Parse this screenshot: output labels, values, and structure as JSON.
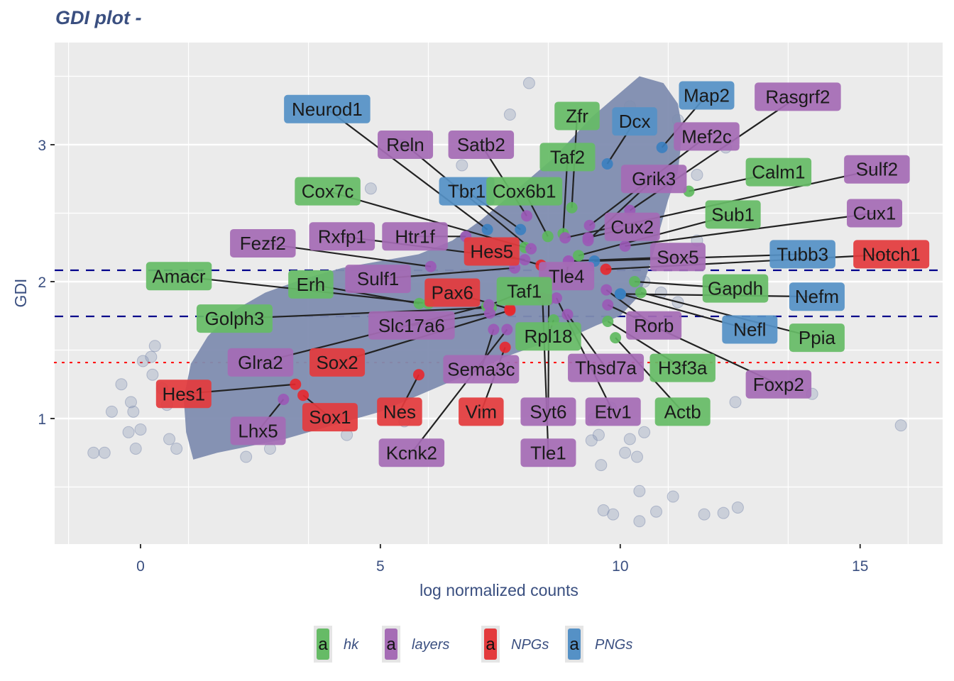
{
  "chart_data": {
    "type": "scatter",
    "title": "GDI plot -",
    "xlabel": "log normalized counts",
    "ylabel": "GDI",
    "xlim": [
      -1.79,
      16.72
    ],
    "ylim": [
      0.083,
      3.746
    ],
    "x_ticks": [
      0,
      5,
      10,
      15
    ],
    "y_ticks": [
      1,
      2,
      3
    ],
    "grid": true,
    "reference_lines": [
      {
        "y": 2.083,
        "style": "dashed",
        "color": "#00008b"
      },
      {
        "y": 1.746,
        "style": "dashed",
        "color": "#00008b"
      },
      {
        "y": 1.409,
        "style": "dotted",
        "color": "#ff0000"
      }
    ],
    "background_cloud": {
      "description": "all genes",
      "color": "#7f8db0",
      "outliers": [
        [
          -0.98,
          0.75
        ],
        [
          -0.75,
          0.75
        ],
        [
          -0.6,
          1.05
        ],
        [
          -0.25,
          0.9
        ],
        [
          -0.15,
          1.05
        ],
        [
          0.0,
          0.92
        ],
        [
          -0.1,
          0.78
        ],
        [
          0.22,
          1.45
        ],
        [
          0.25,
          1.32
        ],
        [
          0.3,
          1.53
        ],
        [
          0.45,
          1.22
        ],
        [
          0.55,
          1.1
        ],
        [
          -0.4,
          1.25
        ],
        [
          -0.2,
          1.12
        ],
        [
          0.05,
          1.42
        ],
        [
          0.6,
          0.85
        ],
        [
          0.75,
          0.78
        ],
        [
          2.2,
          0.72
        ],
        [
          2.7,
          0.78
        ],
        [
          4.3,
          0.88
        ],
        [
          5.5,
          0.98
        ],
        [
          4.8,
          2.68
        ],
        [
          5.45,
          3.0
        ],
        [
          6.7,
          2.85
        ],
        [
          7.7,
          3.22
        ],
        [
          8.1,
          3.45
        ],
        [
          9.05,
          3.0
        ],
        [
          10.2,
          3.28
        ],
        [
          11.2,
          3.18
        ],
        [
          11.6,
          2.78
        ],
        [
          12.2,
          2.98
        ],
        [
          11.6,
          2.3
        ],
        [
          10.5,
          2.0
        ],
        [
          10.85,
          1.92
        ],
        [
          11.2,
          1.85
        ],
        [
          9.45,
          1.0
        ],
        [
          9.55,
          0.88
        ],
        [
          9.4,
          0.84
        ],
        [
          9.8,
          1.08
        ],
        [
          9.6,
          0.66
        ],
        [
          10.1,
          0.75
        ],
        [
          10.35,
          0.72
        ],
        [
          9.65,
          0.33
        ],
        [
          9.85,
          0.3
        ],
        [
          10.4,
          0.25
        ],
        [
          10.4,
          0.47
        ],
        [
          10.75,
          0.32
        ],
        [
          11.1,
          0.43
        ],
        [
          11.75,
          0.3
        ],
        [
          12.15,
          0.31
        ],
        [
          12.45,
          0.35
        ],
        [
          12.4,
          1.12
        ],
        [
          13.6,
          1.25
        ],
        [
          14.0,
          1.18
        ],
        [
          15.85,
          0.95
        ],
        [
          10.5,
          0.9
        ],
        [
          10.2,
          0.85
        ]
      ]
    },
    "series": [
      {
        "name": "hk",
        "color": "#5cb85c",
        "label_color": "#66bb66",
        "points": [
          {
            "gene": "Zfr",
            "x": 8.99,
            "y": 2.54
          },
          {
            "gene": "Taf2",
            "x": 8.81,
            "y": 2.35
          },
          {
            "gene": "Cox6b1",
            "x": 8.49,
            "y": 2.33
          },
          {
            "gene": "Cox7c",
            "x": 8.01,
            "y": 2.25
          },
          {
            "gene": "Calm1",
            "x": 11.43,
            "y": 2.66
          },
          {
            "gene": "Sub1",
            "x": 9.13,
            "y": 2.19
          },
          {
            "gene": "Amacr",
            "x": 6.0,
            "y": 1.84
          },
          {
            "gene": "Erh",
            "x": 5.81,
            "y": 1.84
          },
          {
            "gene": "Golph3",
            "x": 7.31,
            "y": 1.81
          },
          {
            "gene": "Taf1",
            "x": 7.22,
            "y": 1.82
          },
          {
            "gene": "Gapdh",
            "x": 10.3,
            "y": 2.0
          },
          {
            "gene": "Ppia",
            "x": 10.43,
            "y": 1.92
          },
          {
            "gene": "Rpl18",
            "x": 8.61,
            "y": 1.72
          },
          {
            "gene": "H3f3a",
            "x": 9.74,
            "y": 1.71
          },
          {
            "gene": "Actb",
            "x": 9.9,
            "y": 1.59
          }
        ]
      },
      {
        "name": "layers",
        "color": "#9b59b6",
        "label_color": "#a56cb5",
        "points": [
          {
            "gene": "Reln",
            "x": 8.14,
            "y": 2.24
          },
          {
            "gene": "Satb2",
            "x": 8.05,
            "y": 2.48
          },
          {
            "gene": "Rasgrf2",
            "x": 10.2,
            "y": 2.52
          },
          {
            "gene": "Mef2c",
            "x": 9.36,
            "y": 2.41
          },
          {
            "gene": "Grik3",
            "x": 9.33,
            "y": 2.3
          },
          {
            "gene": "Sulf2",
            "x": 8.85,
            "y": 2.32
          },
          {
            "gene": "Cux2",
            "x": 9.33,
            "y": 2.32
          },
          {
            "gene": "Cux1",
            "x": 10.1,
            "y": 2.26
          },
          {
            "gene": "Fezf2",
            "x": 6.05,
            "y": 2.11
          },
          {
            "gene": "Rxfp1",
            "x": 8.01,
            "y": 2.16
          },
          {
            "gene": "Htr1f",
            "x": 6.78,
            "y": 2.33
          },
          {
            "gene": "Sulf1",
            "x": 7.8,
            "y": 2.1
          },
          {
            "gene": "Sox5",
            "x": 8.92,
            "y": 2.15
          },
          {
            "gene": "Tle4",
            "x": 8.92,
            "y": 2.15
          },
          {
            "gene": "Slc17a6",
            "x": 7.28,
            "y": 1.77
          },
          {
            "gene": "Glra2",
            "x": 7.26,
            "y": 1.83
          },
          {
            "gene": "Sema3c",
            "x": 7.36,
            "y": 1.65
          },
          {
            "gene": "Kcnk2",
            "x": 7.64,
            "y": 1.65
          },
          {
            "gene": "Syt6",
            "x": 8.51,
            "y": 1.87
          },
          {
            "gene": "Tle1",
            "x": 8.38,
            "y": 1.88
          },
          {
            "gene": "Thsd7a",
            "x": 8.9,
            "y": 1.76
          },
          {
            "gene": "Etv1",
            "x": 8.67,
            "y": 1.88
          },
          {
            "gene": "Rorb",
            "x": 9.71,
            "y": 1.94
          },
          {
            "gene": "Foxp2",
            "x": 9.74,
            "y": 1.83
          },
          {
            "gene": "Lhx5",
            "x": 2.98,
            "y": 1.14
          }
        ]
      },
      {
        "name": "NPGs",
        "color": "#e8282e",
        "label_color": "#e33b3d",
        "points": [
          {
            "gene": "Hes5",
            "x": 8.35,
            "y": 2.12
          },
          {
            "gene": "Notch1",
            "x": 9.7,
            "y": 2.09
          },
          {
            "gene": "Pax6",
            "x": 7.7,
            "y": 1.8
          },
          {
            "gene": "Sox2",
            "x": 7.7,
            "y": 1.79
          },
          {
            "gene": "Hes1",
            "x": 3.23,
            "y": 1.25
          },
          {
            "gene": "Sox1",
            "x": 3.39,
            "y": 1.17
          },
          {
            "gene": "Nes",
            "x": 5.8,
            "y": 1.32
          },
          {
            "gene": "Vim",
            "x": 7.6,
            "y": 1.52
          }
        ]
      },
      {
        "name": "PNGs",
        "color": "#3a7fc0",
        "label_color": "#5591c6",
        "points": [
          {
            "gene": "Neurod1",
            "x": 7.23,
            "y": 2.38
          },
          {
            "gene": "Tbr1",
            "x": 7.92,
            "y": 2.38
          },
          {
            "gene": "Dcx",
            "x": 9.73,
            "y": 2.86
          },
          {
            "gene": "Map2",
            "x": 10.87,
            "y": 2.98
          },
          {
            "gene": "Tubb3",
            "x": 9.46,
            "y": 2.15
          },
          {
            "gene": "Nefm",
            "x": 10.0,
            "y": 1.91
          },
          {
            "gene": "Nefl",
            "x": 10.0,
            "y": 1.91
          }
        ]
      }
    ],
    "labels": [
      {
        "gene": "Neurod1",
        "group": "PNGs",
        "lx": 3.89,
        "ly": 3.26
      },
      {
        "gene": "Reln",
        "group": "layers",
        "lx": 5.52,
        "ly": 3.0
      },
      {
        "gene": "Satb2",
        "group": "layers",
        "lx": 7.1,
        "ly": 3.0
      },
      {
        "gene": "Zfr",
        "group": "hk",
        "lx": 9.1,
        "ly": 3.21
      },
      {
        "gene": "Dcx",
        "group": "PNGs",
        "lx": 10.3,
        "ly": 3.17
      },
      {
        "gene": "Map2",
        "group": "PNGs",
        "lx": 11.8,
        "ly": 3.36
      },
      {
        "gene": "Rasgrf2",
        "group": "layers",
        "lx": 13.7,
        "ly": 3.35
      },
      {
        "gene": "Mef2c",
        "group": "layers",
        "lx": 11.8,
        "ly": 3.06
      },
      {
        "gene": "Taf2",
        "group": "hk",
        "lx": 8.9,
        "ly": 2.91
      },
      {
        "gene": "Grik3",
        "group": "layers",
        "lx": 10.7,
        "ly": 2.75
      },
      {
        "gene": "Calm1",
        "group": "hk",
        "lx": 13.3,
        "ly": 2.8
      },
      {
        "gene": "Sulf2",
        "group": "layers",
        "lx": 15.35,
        "ly": 2.82
      },
      {
        "gene": "Cox7c",
        "group": "hk",
        "lx": 3.9,
        "ly": 2.66
      },
      {
        "gene": "Tbr1",
        "group": "PNGs",
        "lx": 6.8,
        "ly": 2.66
      },
      {
        "gene": "Cox6b1",
        "group": "hk",
        "lx": 8.0,
        "ly": 2.66
      },
      {
        "gene": "Cux2",
        "group": "layers",
        "lx": 10.25,
        "ly": 2.4
      },
      {
        "gene": "Sub1",
        "group": "hk",
        "lx": 12.35,
        "ly": 2.49
      },
      {
        "gene": "Cux1",
        "group": "layers",
        "lx": 15.3,
        "ly": 2.5
      },
      {
        "gene": "Fezf2",
        "group": "layers",
        "lx": 2.55,
        "ly": 2.28
      },
      {
        "gene": "Rxfp1",
        "group": "layers",
        "lx": 4.2,
        "ly": 2.33
      },
      {
        "gene": "Htr1f",
        "group": "layers",
        "lx": 5.72,
        "ly": 2.33
      },
      {
        "gene": "Hes5",
        "group": "NPGs",
        "lx": 7.32,
        "ly": 2.22
      },
      {
        "gene": "Sox5",
        "group": "layers",
        "lx": 11.2,
        "ly": 2.18
      },
      {
        "gene": "Tubb3",
        "group": "PNGs",
        "lx": 13.8,
        "ly": 2.2
      },
      {
        "gene": "Notch1",
        "group": "NPGs",
        "lx": 15.65,
        "ly": 2.2
      },
      {
        "gene": "Amacr",
        "group": "hk",
        "lx": 0.8,
        "ly": 2.04
      },
      {
        "gene": "Erh",
        "group": "hk",
        "lx": 3.55,
        "ly": 1.98
      },
      {
        "gene": "Sulf1",
        "group": "layers",
        "lx": 4.95,
        "ly": 2.02
      },
      {
        "gene": "Tle4",
        "group": "layers",
        "lx": 8.88,
        "ly": 2.04
      },
      {
        "gene": "Pax6",
        "group": "NPGs",
        "lx": 6.5,
        "ly": 1.92
      },
      {
        "gene": "Taf1",
        "group": "hk",
        "lx": 8.0,
        "ly": 1.93
      },
      {
        "gene": "Gapdh",
        "group": "hk",
        "lx": 12.4,
        "ly": 1.95
      },
      {
        "gene": "Nefm",
        "group": "PNGs",
        "lx": 14.1,
        "ly": 1.89
      },
      {
        "gene": "Golph3",
        "group": "hk",
        "lx": 1.96,
        "ly": 1.73
      },
      {
        "gene": "Slc17a6",
        "group": "layers",
        "lx": 5.65,
        "ly": 1.68
      },
      {
        "gene": "Rorb",
        "group": "layers",
        "lx": 10.7,
        "ly": 1.68
      },
      {
        "gene": "Nefl",
        "group": "PNGs",
        "lx": 12.7,
        "ly": 1.65
      },
      {
        "gene": "Ppia",
        "group": "hk",
        "lx": 14.1,
        "ly": 1.59
      },
      {
        "gene": "Rpl18",
        "group": "hk",
        "lx": 8.5,
        "ly": 1.6
      },
      {
        "gene": "Glra2",
        "group": "layers",
        "lx": 2.5,
        "ly": 1.41
      },
      {
        "gene": "Sox2",
        "group": "NPGs",
        "lx": 4.1,
        "ly": 1.41
      },
      {
        "gene": "Thsd7a",
        "group": "layers",
        "lx": 9.7,
        "ly": 1.37
      },
      {
        "gene": "H3f3a",
        "group": "hk",
        "lx": 11.3,
        "ly": 1.37
      },
      {
        "gene": "Foxp2",
        "group": "layers",
        "lx": 13.3,
        "ly": 1.25
      },
      {
        "gene": "Sema3c",
        "group": "layers",
        "lx": 7.1,
        "ly": 1.36
      },
      {
        "gene": "Hes1",
        "group": "NPGs",
        "lx": 0.9,
        "ly": 1.18
      },
      {
        "gene": "Nes",
        "group": "NPGs",
        "lx": 5.4,
        "ly": 1.05
      },
      {
        "gene": "Vim",
        "group": "NPGs",
        "lx": 7.1,
        "ly": 1.05
      },
      {
        "gene": "Syt6",
        "group": "layers",
        "lx": 8.5,
        "ly": 1.05
      },
      {
        "gene": "Etv1",
        "group": "layers",
        "lx": 9.85,
        "ly": 1.05
      },
      {
        "gene": "Actb",
        "group": "hk",
        "lx": 11.3,
        "ly": 1.05
      },
      {
        "gene": "Sox1",
        "group": "NPGs",
        "lx": 3.95,
        "ly": 1.01
      },
      {
        "gene": "Lhx5",
        "group": "layers",
        "lx": 2.45,
        "ly": 0.91
      },
      {
        "gene": "Kcnk2",
        "group": "layers",
        "lx": 5.65,
        "ly": 0.75
      },
      {
        "gene": "Tle1",
        "group": "layers",
        "lx": 8.5,
        "ly": 0.75
      }
    ],
    "legend": {
      "position": "bottom",
      "key_glyph": "a",
      "entries": [
        {
          "label": "hk",
          "color": "#66bb66"
        },
        {
          "label": "layers",
          "color": "#a56cb5"
        },
        {
          "label": "NPGs",
          "color": "#e33b3d"
        },
        {
          "label": "PNGs",
          "color": "#5591c6"
        }
      ]
    }
  }
}
